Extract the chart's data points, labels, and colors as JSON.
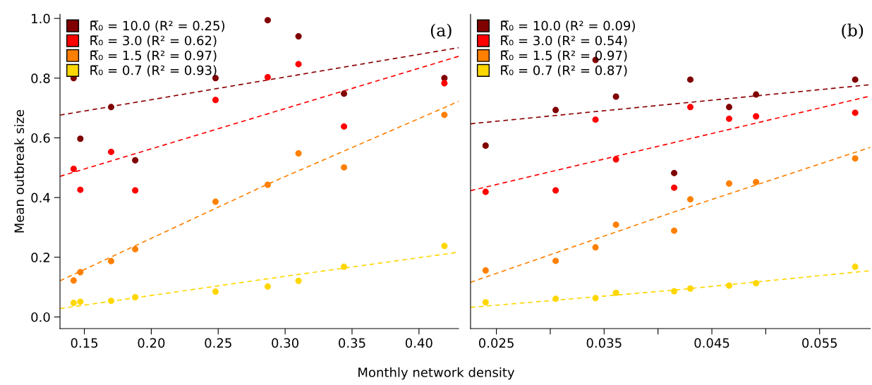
{
  "chart_data": [
    {
      "type": "scatter",
      "ylabel": "Mean outbreak size",
      "xlabel": "Monthly network density",
      "annotations": [
        "(a)"
      ],
      "legend": "top left",
      "marker": "circle",
      "grid": false,
      "xlim": [
        0.1318,
        0.4296
      ],
      "xticks": [
        0.15,
        {
          "value": 0.2,
          "label": "0.20"
        },
        0.25,
        {
          "value": 0.3,
          "label": "0.30"
        },
        0.35,
        {
          "value": 0.4,
          "label": "0.40"
        }
      ],
      "ylim": [
        -0.039,
        1.014
      ],
      "yticks": [
        {
          "value": 0,
          "label": "0.0"
        },
        0.2,
        0.4,
        0.6,
        0.8,
        {
          "value": 1,
          "label": "1.0"
        }
      ],
      "x": [
        0.142,
        0.147,
        0.17,
        0.188,
        0.248,
        0.287,
        0.31,
        0.344,
        0.419
      ],
      "series": [
        {
          "name": "R̅₀ = 10.0 (R² = 0.25)",
          "color": "#800000",
          "values": [
            0.8,
            0.597,
            0.703,
            0.525,
            0.8,
            0.994,
            0.94,
            0.748,
            0.8
          ]
        },
        {
          "name": "R̅₀ = 3.0 (R² = 0.62)",
          "color": "#ff0000",
          "values": [
            0.496,
            0.426,
            0.553,
            0.424,
            0.727,
            0.803,
            0.847,
            0.638,
            0.783
          ]
        },
        {
          "name": "R̅₀ = 1.5 (R² = 0.97)",
          "color": "#ff8000",
          "values": [
            0.122,
            0.15,
            0.187,
            0.227,
            0.386,
            0.443,
            0.548,
            0.501,
            0.677
          ]
        },
        {
          "name": "R̅₀ = 0.7 (R² = 0.93)",
          "color": "#ffd700",
          "values": [
            0.047,
            0.051,
            0.054,
            0.066,
            0.085,
            0.102,
            0.121,
            0.168,
            0.238
          ]
        },
        {
          "type": "line",
          "color": "#8b0000",
          "line_style": "dashed",
          "marker": "none",
          "x": [
            0.1318,
            0.4296
          ],
          "values": [
            0.676,
            0.902
          ]
        },
        {
          "type": "line",
          "color": "#ff0000",
          "line_style": "dashed",
          "marker": "none",
          "x": [
            0.1318,
            0.4296
          ],
          "values": [
            0.471,
            0.873
          ]
        },
        {
          "type": "line",
          "color": "#ff8000",
          "line_style": "dashed",
          "marker": "none",
          "x": [
            0.1318,
            0.287,
            0.4296
          ],
          "values": [
            0.121,
            0.445,
            0.722
          ]
        },
        {
          "type": "line",
          "color": "#ffd700",
          "line_style": "dashed",
          "marker": "none",
          "x": [
            0.1318,
            0.287,
            0.4296
          ],
          "values": [
            0.028,
            0.128,
            0.217
          ]
        }
      ]
    },
    {
      "type": "scatter",
      "annotations": [
        "(b)"
      ],
      "legend": "top left",
      "marker": "circle",
      "grid": false,
      "tick_labels": "x",
      "xlim": [
        0.0226,
        0.0597
      ],
      "xticks": [
        0.025,
        {
          "value": 0.03,
          "label": null
        },
        0.035,
        {
          "value": 0.04,
          "label": null
        },
        0.045,
        {
          "value": 0.05,
          "label": null
        },
        0.055
      ],
      "ylim": [
        -0.039,
        1.014
      ],
      "x": [
        0.024,
        0.0305,
        0.0342,
        0.0361,
        0.0415,
        0.043,
        0.0466,
        0.0491,
        0.0583
      ],
      "series": [
        {
          "name": "R̅₀ = 10.0 (R² = 0.09)",
          "color": "#800000",
          "values": [
            0.574,
            0.693,
            0.861,
            0.738,
            0.482,
            0.795,
            0.703,
            0.745,
            0.795
          ]
        },
        {
          "name": "R̅₀ = 3.0 (R² = 0.54)",
          "color": "#ff0000",
          "values": [
            0.419,
            0.424,
            0.661,
            0.528,
            0.433,
            0.703,
            0.664,
            0.672,
            0.684
          ]
        },
        {
          "name": "R̅₀ = 1.5 (R² = 0.97)",
          "color": "#ff8000",
          "values": [
            0.156,
            0.188,
            0.233,
            0.309,
            0.289,
            0.394,
            0.447,
            0.452,
            0.531
          ]
        },
        {
          "name": "R̅₀ = 0.7 (R² = 0.87)",
          "color": "#ffd700",
          "values": [
            0.049,
            0.061,
            0.063,
            0.081,
            0.086,
            0.095,
            0.105,
            0.113,
            0.168
          ]
        },
        {
          "type": "line",
          "color": "#8b0000",
          "line_style": "dashed",
          "marker": "none",
          "x": [
            0.0226,
            0.0597
          ],
          "values": [
            0.647,
            0.778
          ]
        },
        {
          "type": "line",
          "color": "#ff0000",
          "line_style": "dashed",
          "marker": "none",
          "x": [
            0.0226,
            0.0597
          ],
          "values": [
            0.423,
            0.74
          ]
        },
        {
          "type": "line",
          "color": "#ff8000",
          "line_style": "dashed",
          "marker": "none",
          "x": [
            0.0226,
            0.0415,
            0.0597
          ],
          "values": [
            0.116,
            0.352,
            0.568
          ]
        },
        {
          "type": "line",
          "color": "#ffd700",
          "line_style": "dashed",
          "marker": "none",
          "x": [
            0.0226,
            0.0415,
            0.0597
          ],
          "values": [
            0.032,
            0.09,
            0.155
          ]
        }
      ]
    }
  ]
}
